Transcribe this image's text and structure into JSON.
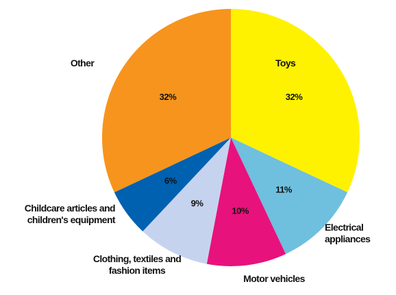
{
  "chart_data": {
    "type": "pie",
    "categories": [
      "Toys",
      "Electrical appliances",
      "Motor vehicles",
      "Clothing, textiles and fashion items",
      "Childcare articles and children's equipment",
      "Other"
    ],
    "values": [
      32,
      11,
      10,
      9,
      6,
      32
    ],
    "value_labels": [
      "32%",
      "11%",
      "10%",
      "9%",
      "6%",
      "32%"
    ],
    "colors": [
      "#fef200",
      "#6fbfdf",
      "#e8127c",
      "#c6d3ef",
      "#0061b0",
      "#f7941d"
    ]
  }
}
